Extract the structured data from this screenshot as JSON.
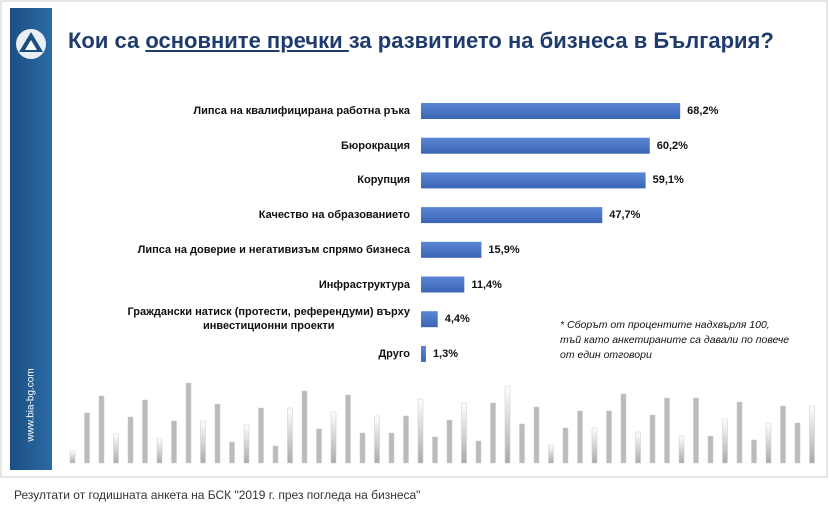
{
  "chart_data": {
    "type": "bar",
    "orientation": "horizontal",
    "title_parts": [
      "Кои са ",
      "основните пречки ",
      "за развитието на бизнеса в България?"
    ],
    "categories": [
      "Липса на квалифицирана работна ръка",
      "Бюрокрация",
      "Корупция",
      "Качество на образованието",
      "Липса на доверие и негативизъм спрямо бизнеса",
      "Инфраструктура",
      "Граждански натиск (протести, референдуми) върху\nинвестиционни проекти",
      "Друго"
    ],
    "values": [
      68.2,
      60.2,
      59.1,
      47.7,
      15.9,
      11.4,
      4.4,
      1.3
    ],
    "value_labels": [
      "68,2%",
      "60,2%",
      "59,1%",
      "47,7%",
      "15,9%",
      "11,4%",
      "4,4%",
      "1,3%"
    ],
    "color": "#4472c4",
    "footnote": "* Сборът от процентите надхвърля 100, тъй като анкетираните са давали по повече от един отговори",
    "site": "www.bia-bg.com",
    "caption": "Резултати от годишната анкета на БСК \"2019 г. през погледа на бизнеса\""
  }
}
